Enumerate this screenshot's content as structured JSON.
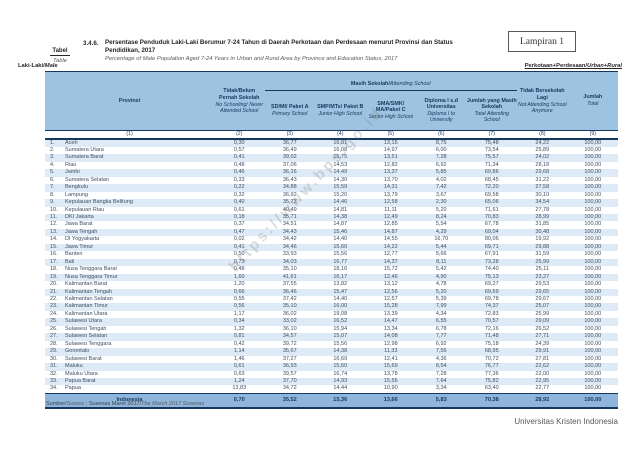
{
  "page": {
    "lampiran": "Lampiran 1",
    "table_label_id": "Tabel",
    "table_label_en": "Table",
    "table_number": "3.4.6.",
    "title_id": "Persentase Penduduk Laki-Laki Berumur 7-24 Tahun di Daerah Perkotaan dan Perdesaan menurut Provinsi dan Status Pendidikan, 2017",
    "title_en": "Percentage of Male Population Aged 7-24 Years in Urban and Rural Area by Province and Education Status, 2017",
    "tag_left_id": "Laki-Laki/",
    "tag_left_en": "Male",
    "tag_right_id": "Perkotaan+Perdesaan/",
    "tag_right_en": "Urban+Rural",
    "watermark": "https://www.bps.go.id",
    "source_prefix": "Sumber/",
    "source_label_en": "Source",
    "source_mid": " : Susenas Maret 2017/",
    "source_en": "The March 2017 Susenas",
    "footer_right": "Universitas Kristen Indonesia"
  },
  "colors": {
    "header_bg": "#9DC3E0",
    "stripe_bg": "#DEEAF5",
    "total_bg": "#8FB5DC",
    "border_navy": "#17375E",
    "header_text": "#17375E"
  },
  "table": {
    "group_header": {
      "id": "Masih Sekolah/",
      "en": "Attending School"
    },
    "columns": [
      {
        "id": "Provinsi",
        "en": "",
        "num": "(1)"
      },
      {
        "id": "Tidak/Belum Pernah Sekolah",
        "en": "No Schooling/ Never Attended School",
        "num": "(2)"
      },
      {
        "id": "SD/MI/ Paket A",
        "en": "Primary School",
        "num": "(3)"
      },
      {
        "id": "SMP/MTs/ Paket B",
        "en": "Junior High School",
        "num": "(4)"
      },
      {
        "id": "SMA/SMK/ MA/Paket C",
        "en": "Senior High School",
        "num": "(5)"
      },
      {
        "id": "Diploma I s.d Universitas",
        "en": "Diploma I to University",
        "num": "(6)"
      },
      {
        "id": "Jumlah yang Masih Sekolah",
        "en": "Total Attending School",
        "num": "(7)"
      },
      {
        "id": "Tidak Bersekolah Lagi",
        "en": "Not Attending School Anymore",
        "num": "(8)"
      },
      {
        "id": "Jumlah",
        "en": "Total",
        "num": "(9)"
      }
    ],
    "rows": [
      {
        "no": "1.",
        "name": "Aceh",
        "values": [
          "0,30",
          "36,77",
          "16,81",
          "13,15",
          "8,75",
          "75,48",
          "24,22",
          "100,00"
        ]
      },
      {
        "no": "2.",
        "name": "Sumatera Utara",
        "values": [
          "0,57",
          "36,49",
          "16,08",
          "14,97",
          "6,00",
          "73,54",
          "25,89",
          "100,00"
        ]
      },
      {
        "no": "3.",
        "name": "Sumatera Barat",
        "values": [
          "0,41",
          "39,02",
          "15,75",
          "13,51",
          "7,28",
          "75,57",
          "24,02",
          "100,00"
        ]
      },
      {
        "no": "4.",
        "name": "Riau",
        "values": [
          "0,48",
          "37,06",
          "14,53",
          "12,82",
          "6,92",
          "71,34",
          "28,18",
          "100,00"
        ]
      },
      {
        "no": "5.",
        "name": "Jambi",
        "values": [
          "0,46",
          "36,16",
          "14,49",
          "13,37",
          "5,85",
          "69,86",
          "29,68",
          "100,00"
        ]
      },
      {
        "no": "6.",
        "name": "Sumatera Selatan",
        "values": [
          "0,33",
          "36,43",
          "14,30",
          "13,70",
          "4,02",
          "68,45",
          "31,22",
          "100,00"
        ]
      },
      {
        "no": "7.",
        "name": "Bengkulu",
        "values": [
          "0,22",
          "34,88",
          "15,59",
          "14,31",
          "7,42",
          "72,20",
          "27,58",
          "100,00"
        ]
      },
      {
        "no": "8.",
        "name": "Lampung",
        "values": [
          "0,32",
          "36,92",
          "15,20",
          "13,79",
          "3,67",
          "69,58",
          "30,10",
          "100,00"
        ]
      },
      {
        "no": "9.",
        "name": "Kepulauan Bangka Belitung",
        "values": [
          "0,40",
          "35,73",
          "14,46",
          "12,58",
          "2,30",
          "65,06",
          "34,54",
          "100,00"
        ]
      },
      {
        "no": "10.",
        "name": "Kepulauan Riau",
        "values": [
          "0,61",
          "40,49",
          "14,81",
          "11,11",
          "5,20",
          "71,61",
          "27,78",
          "100,00"
        ]
      },
      {
        "no": "11.",
        "name": "DKI Jakarta",
        "values": [
          "0,18",
          "35,71",
          "14,38",
          "12,49",
          "8,24",
          "70,83",
          "28,99",
          "100,00"
        ]
      },
      {
        "no": "12.",
        "name": "Jawa Barat",
        "values": [
          "0,37",
          "34,51",
          "14,87",
          "12,85",
          "5,54",
          "67,78",
          "31,85",
          "100,00"
        ]
      },
      {
        "no": "13.",
        "name": "Jawa Tengah",
        "values": [
          "0,47",
          "34,43",
          "15,46",
          "14,87",
          "4,29",
          "69,04",
          "30,48",
          "100,00"
        ]
      },
      {
        "no": "14.",
        "name": "DI Yogyakarta",
        "values": [
          "0,02",
          "34,42",
          "14,40",
          "14,55",
          "16,70",
          "80,06",
          "19,92",
          "100,00"
        ]
      },
      {
        "no": "15.",
        "name": "Jawa Timur",
        "values": [
          "0,41",
          "34,46",
          "15,60",
          "14,22",
          "5,44",
          "69,71",
          "29,88",
          "100,00"
        ]
      },
      {
        "no": "16.",
        "name": "Banten",
        "values": [
          "0,50",
          "33,93",
          "15,56",
          "12,77",
          "5,66",
          "67,91",
          "31,59",
          "100,00"
        ]
      },
      {
        "no": "17.",
        "name": "Bali",
        "values": [
          "0,73",
          "34,03",
          "16,77",
          "14,37",
          "8,11",
          "73,28",
          "25,99",
          "100,00"
        ]
      },
      {
        "no": "18.",
        "name": "Nusa Tenggara Barat",
        "values": [
          "0,48",
          "35,10",
          "18,16",
          "15,72",
          "5,42",
          "74,40",
          "25,11",
          "100,00"
        ]
      },
      {
        "no": "19.",
        "name": "Nusa Tenggara Timur",
        "values": [
          "1,60",
          "41,61",
          "16,17",
          "12,46",
          "4,90",
          "75,13",
          "23,27",
          "100,00"
        ]
      },
      {
        "no": "20.",
        "name": "Kalimantan Barat",
        "values": [
          "1,20",
          "37,55",
          "13,82",
          "13,12",
          "4,78",
          "69,27",
          "29,53",
          "100,00"
        ]
      },
      {
        "no": "21.",
        "name": "Kalimantan Tengah",
        "values": [
          "0,66",
          "36,46",
          "15,47",
          "12,56",
          "5,20",
          "69,69",
          "29,65",
          "100,00"
        ]
      },
      {
        "no": "22.",
        "name": "Kalimantan Selatan",
        "values": [
          "0,55",
          "37,42",
          "14,40",
          "12,57",
          "5,39",
          "69,78",
          "29,67",
          "100,00"
        ]
      },
      {
        "no": "23.",
        "name": "Kalimantan Timur",
        "values": [
          "0,56",
          "35,10",
          "16,00",
          "15,28",
          "7,99",
          "74,37",
          "25,07",
          "100,00"
        ]
      },
      {
        "no": "24.",
        "name": "Kalimantan Utara",
        "values": [
          "1,17",
          "36,02",
          "19,08",
          "13,39",
          "4,34",
          "72,83",
          "25,99",
          "100,00"
        ]
      },
      {
        "no": "25.",
        "name": "Sulawesi Utara",
        "values": [
          "0,34",
          "33,02",
          "16,52",
          "14,47",
          "6,55",
          "70,57",
          "29,09",
          "100,00"
        ]
      },
      {
        "no": "26.",
        "name": "Sulawesi Tengah",
        "values": [
          "1,32",
          "36,10",
          "15,94",
          "13,34",
          "6,78",
          "72,16",
          "26,52",
          "100,00"
        ]
      },
      {
        "no": "27.",
        "name": "Sulawesi Selatan",
        "values": [
          "0,81",
          "34,57",
          "15,07",
          "14,08",
          "7,77",
          "71,48",
          "27,71",
          "100,00"
        ]
      },
      {
        "no": "28.",
        "name": "Sulawesi Tenggara",
        "values": [
          "0,42",
          "39,72",
          "15,56",
          "12,98",
          "6,92",
          "75,18",
          "24,39",
          "100,00"
        ]
      },
      {
        "no": "29.",
        "name": "Gorontalo",
        "values": [
          "1,14",
          "35,67",
          "14,38",
          "11,33",
          "7,56",
          "68,95",
          "29,91",
          "100,00"
        ]
      },
      {
        "no": "30.",
        "name": "Sulawesi Barat",
        "values": [
          "1,46",
          "37,27",
          "16,69",
          "12,41",
          "4,36",
          "70,72",
          "27,81",
          "100,00"
        ]
      },
      {
        "no": "31.",
        "name": "Maluku",
        "values": [
          "0,61",
          "36,93",
          "15,60",
          "15,69",
          "8,54",
          "76,77",
          "22,62",
          "100,00"
        ]
      },
      {
        "no": "32.",
        "name": "Maluku Utara",
        "values": [
          "0,63",
          "39,57",
          "16,74",
          "13,78",
          "7,28",
          "77,36",
          "22,00",
          "100,00"
        ]
      },
      {
        "no": "33.",
        "name": "Papua Barat",
        "values": [
          "1,24",
          "37,70",
          "14,93",
          "15,56",
          "7,64",
          "75,82",
          "22,95",
          "100,00"
        ]
      },
      {
        "no": "34.",
        "name": "Papua",
        "values": [
          "13,83",
          "34,72",
          "14,44",
          "10,90",
          "3,34",
          "63,40",
          "22,77",
          "100,00"
        ]
      }
    ],
    "total_row": {
      "name": "Indonesia",
      "values": [
        "0,70",
        "35,52",
        "15,36",
        "13,66",
        "5,83",
        "70,38",
        "28,92",
        "100,00"
      ]
    }
  }
}
